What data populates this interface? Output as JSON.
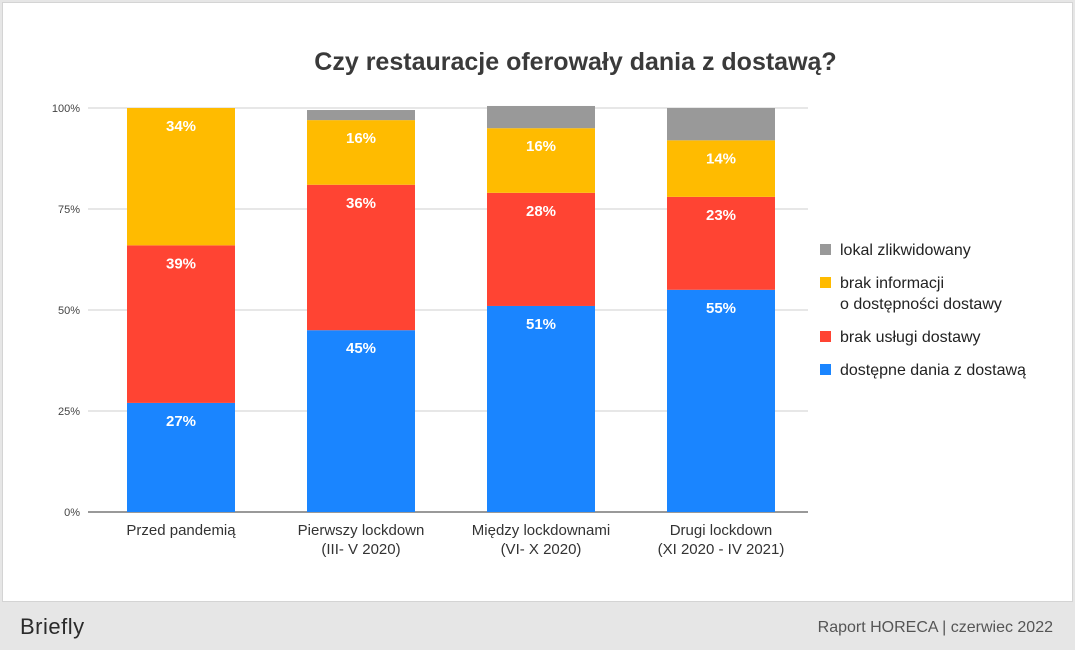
{
  "footer": {
    "brand": "Briefly",
    "report": "Raport HORECA | czerwiec 2022"
  },
  "chart_data": {
    "type": "bar",
    "stacked": true,
    "title": "Czy restauracje oferowały dania z dostawą?",
    "xlabel": "",
    "ylabel": "",
    "ylim": [
      0,
      100
    ],
    "yticks": [
      "0%",
      "25%",
      "50%",
      "75%",
      "100%"
    ],
    "grid": true,
    "legend_position": "right",
    "categories": [
      "Przed pandemią",
      "Pierwszy lockdown\n(III- V 2020)",
      "Między lockdownami\n(VI- X 2020)",
      "Drugi lockdown\n(XI 2020 - IV 2021)"
    ],
    "series": [
      {
        "name": "dostępne dania z dostawą",
        "color": "#1a85ff",
        "values": [
          27,
          45,
          51,
          55
        ],
        "labels": [
          "27%",
          "45%",
          "51%",
          "55%"
        ]
      },
      {
        "name": "brak usługi dostawy",
        "color": "#ff4433",
        "values": [
          39,
          36,
          28,
          23
        ],
        "labels": [
          "39%",
          "36%",
          "28%",
          "23%"
        ]
      },
      {
        "name": "brak informacji\no dostępności dostawy",
        "color": "#ffbb00",
        "values": [
          34,
          16,
          16,
          14
        ],
        "labels": [
          "34%",
          "16%",
          "16%",
          "14%"
        ]
      },
      {
        "name": "lokal zlikwidowany",
        "color": "#999999",
        "values": [
          0,
          2.5,
          5.5,
          8
        ],
        "labels": [
          "",
          "",
          "",
          ""
        ]
      }
    ]
  }
}
